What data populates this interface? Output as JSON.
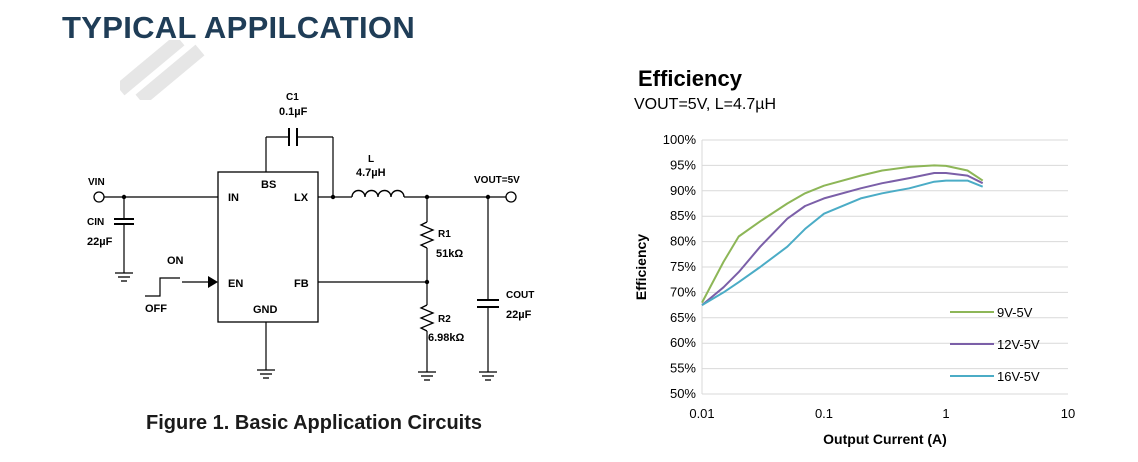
{
  "section": {
    "title": "TYPICAL APPILCATION"
  },
  "circuit": {
    "caption": "Figure 1. Basic Application Circuits",
    "c1_name": "C1",
    "c1_value": "0.1µF",
    "l_name": "L",
    "l_value": "4.7µH",
    "vin_label": "VIN",
    "vout_label": "VOUT=5V",
    "cin_name": "CIN",
    "cin_value": "22µF",
    "on_label": "ON",
    "off_label": "OFF",
    "r1_name": "R1",
    "r1_value": "51kΩ",
    "r2_name": "R2",
    "r2_value": "6.98kΩ",
    "cout_name": "COUT",
    "cout_value": "22µF",
    "pins": {
      "bs": "BS",
      "in": "IN",
      "lx": "LX",
      "en": "EN",
      "fb": "FB",
      "gnd": "GND"
    }
  },
  "chart_data": {
    "type": "line",
    "title": "Efficiency",
    "subtitle": "VOUT=5V, L=4.7µH",
    "xlabel": "Output Current (A)",
    "ylabel": "Efficiency",
    "xscale": "log",
    "xlim": [
      0.01,
      10
    ],
    "ylim": [
      50,
      100
    ],
    "xticks": [
      "0.01",
      "0.1",
      "1",
      "10"
    ],
    "yticks": [
      "50%",
      "55%",
      "60%",
      "65%",
      "70%",
      "75%",
      "80%",
      "85%",
      "90%",
      "95%",
      "100%"
    ],
    "grid": "horizontal",
    "legend": "right",
    "series": [
      {
        "name": "9V-5V",
        "color": "#8db657",
        "x": [
          0.01,
          0.015,
          0.02,
          0.03,
          0.05,
          0.07,
          0.1,
          0.2,
          0.3,
          0.5,
          0.8,
          1.0,
          1.5,
          2.0
        ],
        "y": [
          68,
          76,
          81,
          84,
          87.5,
          89.5,
          91,
          93,
          94,
          94.7,
          95,
          94.9,
          94,
          92
        ]
      },
      {
        "name": "12V-5V",
        "color": "#7b5fa8",
        "x": [
          0.01,
          0.015,
          0.02,
          0.03,
          0.05,
          0.07,
          0.1,
          0.2,
          0.3,
          0.5,
          0.8,
          1.0,
          1.5,
          2.0
        ],
        "y": [
          67.5,
          71,
          74,
          79,
          84.5,
          87,
          88.5,
          90.5,
          91.5,
          92.5,
          93.5,
          93.5,
          93,
          91.5
        ]
      },
      {
        "name": "16V-5V",
        "color": "#4bacc6",
        "x": [
          0.01,
          0.015,
          0.02,
          0.03,
          0.05,
          0.07,
          0.1,
          0.2,
          0.3,
          0.5,
          0.8,
          1.0,
          1.5,
          2.0
        ],
        "y": [
          67.5,
          70,
          72,
          75,
          79,
          82.5,
          85.5,
          88.5,
          89.5,
          90.5,
          91.8,
          92,
          92,
          90.8
        ]
      }
    ]
  }
}
